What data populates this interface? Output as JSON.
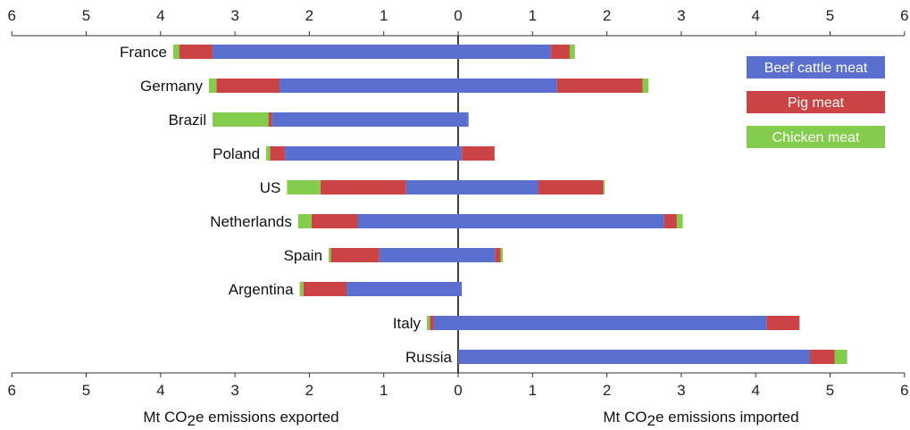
{
  "chart_data": {
    "type": "bar",
    "orientation": "horizontal-diverging",
    "categories": [
      "France",
      "Germany",
      "Brazil",
      "Poland",
      "US",
      "Netherlands",
      "Spain",
      "Argentina",
      "Italy",
      "Russia"
    ],
    "series": [
      {
        "name": "Beef cattle meat",
        "color": "#5b6fd0",
        "exported": [
          3.3,
          2.4,
          2.5,
          2.33,
          0.7,
          1.35,
          1.06,
          1.5,
          0.33,
          0
        ],
        "imported": [
          1.25,
          1.33,
          0.14,
          0.05,
          1.08,
          2.77,
          0.5,
          0.05,
          4.15,
          4.73
        ]
      },
      {
        "name": "Pig meat",
        "color": "#cb4344",
        "exported": [
          0.45,
          0.85,
          0.05,
          0.2,
          1.15,
          0.62,
          0.65,
          0.58,
          0.05,
          0
        ],
        "imported": [
          0.25,
          1.15,
          0,
          0.44,
          0.87,
          0.17,
          0.07,
          0,
          0.44,
          0.33
        ]
      },
      {
        "name": "Chicken meat",
        "color": "#84cc4c",
        "exported": [
          0.08,
          0.1,
          0.75,
          0.05,
          0.45,
          0.18,
          0.03,
          0.05,
          0.04,
          0
        ],
        "imported": [
          0.07,
          0.08,
          0,
          0,
          0.02,
          0.08,
          0.03,
          0,
          0,
          0.17
        ]
      }
    ],
    "x_ticks": [
      "6",
      "5",
      "4",
      "3",
      "2",
      "1",
      "0",
      "1",
      "2",
      "3",
      "4",
      "5",
      "6"
    ],
    "xlim": [
      -6,
      6
    ],
    "xlabel_left": "Mt CO2e emissions exported",
    "xlabel_right": "Mt CO2e emissions imported",
    "grid": false,
    "legend_position": "top-right"
  }
}
